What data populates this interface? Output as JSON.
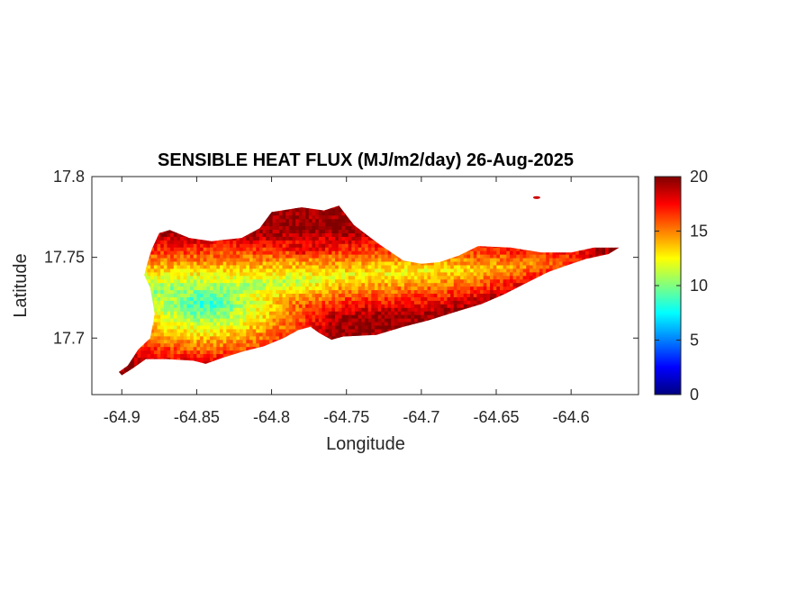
{
  "chart_data": {
    "type": "heatmap",
    "title": "SENSIBLE HEAT FLUX (MJ/m2/day) 26-Aug-2025",
    "xlabel": "Longitude",
    "ylabel": "Latitude",
    "xlim": [
      -64.92,
      -64.555
    ],
    "ylim": [
      17.665,
      17.8
    ],
    "xticks": [
      -64.9,
      -64.85,
      -64.8,
      -64.75,
      -64.7,
      -64.65,
      -64.6
    ],
    "xtick_labels": [
      "-64.9",
      "-64.85",
      "-64.8",
      "-64.75",
      "-64.7",
      "-64.65",
      "-64.6"
    ],
    "yticks": [
      17.7,
      17.75,
      17.8
    ],
    "ytick_labels": [
      "17.7",
      "17.75",
      "17.8"
    ],
    "colorbar": {
      "colormap": "jet",
      "range": [
        0,
        20
      ],
      "ticks": [
        0,
        5,
        10,
        15,
        20
      ],
      "tick_labels": [
        "0",
        "5",
        "10",
        "15",
        "20"
      ]
    },
    "grid": false,
    "island_outline": [
      [
        -64.902,
        17.679
      ],
      [
        -64.896,
        17.683
      ],
      [
        -64.889,
        17.693
      ],
      [
        -64.881,
        17.7
      ],
      [
        -64.878,
        17.715
      ],
      [
        -64.881,
        17.731
      ],
      [
        -64.885,
        17.739
      ],
      [
        -64.883,
        17.746
      ],
      [
        -64.88,
        17.755
      ],
      [
        -64.875,
        17.765
      ],
      [
        -64.868,
        17.767
      ],
      [
        -64.855,
        17.762
      ],
      [
        -64.84,
        17.76
      ],
      [
        -64.82,
        17.762
      ],
      [
        -64.808,
        17.768
      ],
      [
        -64.8,
        17.778
      ],
      [
        -64.78,
        17.781
      ],
      [
        -64.765,
        17.779
      ],
      [
        -64.755,
        17.782
      ],
      [
        -64.745,
        17.77
      ],
      [
        -64.728,
        17.758
      ],
      [
        -64.712,
        17.748
      ],
      [
        -64.7,
        17.746
      ],
      [
        -64.688,
        17.747
      ],
      [
        -64.675,
        17.751
      ],
      [
        -64.662,
        17.757
      ],
      [
        -64.64,
        17.756
      ],
      [
        -64.62,
        17.753
      ],
      [
        -64.6,
        17.753
      ],
      [
        -64.585,
        17.756
      ],
      [
        -64.568,
        17.756
      ],
      [
        -64.575,
        17.752
      ],
      [
        -64.59,
        17.749
      ],
      [
        -64.603,
        17.745
      ],
      [
        -64.615,
        17.741
      ],
      [
        -64.628,
        17.735
      ],
      [
        -64.645,
        17.727
      ],
      [
        -64.66,
        17.721
      ],
      [
        -64.678,
        17.716
      ],
      [
        -64.695,
        17.711
      ],
      [
        -64.712,
        17.707
      ],
      [
        -64.73,
        17.702
      ],
      [
        -64.752,
        17.701
      ],
      [
        -64.76,
        17.699
      ],
      [
        -64.768,
        17.703
      ],
      [
        -64.774,
        17.707
      ],
      [
        -64.782,
        17.705
      ],
      [
        -64.792,
        17.7
      ],
      [
        -64.805,
        17.695
      ],
      [
        -64.818,
        17.692
      ],
      [
        -64.832,
        17.688
      ],
      [
        -64.844,
        17.684
      ],
      [
        -64.852,
        17.686
      ],
      [
        -64.87,
        17.687
      ],
      [
        -64.884,
        17.687
      ],
      [
        -64.893,
        17.681
      ],
      [
        -64.9,
        17.677
      ]
    ],
    "islet": [
      -64.623,
      17.787
    ],
    "value_field": {
      "cool_core_center": [
        -64.845,
        17.721
      ],
      "cool_core_value": 8,
      "cool_band": [
        [
          -64.88,
          17.728,
          10
        ],
        [
          -64.8,
          17.733,
          11
        ],
        [
          -64.75,
          17.738,
          12.5
        ],
        [
          -64.7,
          17.74,
          12.5
        ],
        [
          -64.66,
          17.742,
          13.5
        ],
        [
          -64.6,
          17.747,
          16
        ]
      ],
      "north_max": [
        -64.775,
        17.77,
        19.5
      ],
      "south_max": [
        -64.7,
        17.712,
        17.5
      ],
      "east_tip_max": [
        -64.575,
        17.754,
        19.5
      ],
      "west_tip": [
        -64.9,
        17.679,
        16
      ]
    }
  }
}
